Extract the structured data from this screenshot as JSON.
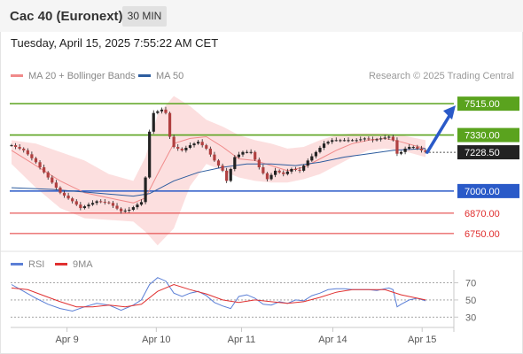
{
  "header": {
    "title": "Cac 40 (Euronext)",
    "timeframe": "30 MIN"
  },
  "timestamp": "Tuesday, April 15, 2025 7:55:22 AM CET",
  "legend": {
    "ma20": {
      "label": "MA 20 + Bollinger Bands",
      "color": "#f08a8a"
    },
    "ma50": {
      "label": "MA 50",
      "color": "#2d5c9e"
    },
    "credit": "Research © 2025 Trading Central"
  },
  "rsi_legend": {
    "rsi": {
      "label": "RSI",
      "color": "#5b7fd6"
    },
    "ma9": {
      "label": "9MA",
      "color": "#e03030"
    }
  },
  "chart_data": [
    {
      "type": "candlestick",
      "ylim": [
        6650,
        7620
      ],
      "x_ticks": [
        "Apr 9",
        "Apr 10",
        "Apr 11",
        "Apr 14",
        "Apr 15"
      ],
      "levels": [
        {
          "value": 7515,
          "label": "7515.00",
          "kind": "resistance",
          "color": "#5aa31e"
        },
        {
          "value": 7330,
          "label": "7330.00",
          "kind": "resistance",
          "color": "#5aa31e"
        },
        {
          "value": 7000,
          "label": "7000.00",
          "kind": "support",
          "color": "#2a5ac8"
        },
        {
          "value": 6870,
          "label": "6870.00",
          "kind": "support",
          "color": "#e03030"
        },
        {
          "value": 6750,
          "label": "6750.00",
          "kind": "support",
          "color": "#e03030"
        }
      ],
      "last_price": {
        "value": 7228.5,
        "label": "7228.50"
      },
      "forecast": {
        "from": 7228.5,
        "to": 7515,
        "color": "#2a5ac8"
      },
      "price_path": [
        [
          0,
          7270
        ],
        [
          3,
          7240
        ],
        [
          6,
          7170
        ],
        [
          9,
          7080
        ],
        [
          12,
          6990
        ],
        [
          15,
          6940
        ],
        [
          17,
          6900
        ],
        [
          19,
          6920
        ],
        [
          21,
          6940
        ],
        [
          24,
          6930
        ],
        [
          27,
          6880
        ],
        [
          29,
          6890
        ],
        [
          31,
          6920
        ],
        [
          32,
          6935
        ],
        [
          33,
          7080
        ],
        [
          34,
          7350
        ],
        [
          35,
          7460
        ],
        [
          36,
          7470
        ],
        [
          37,
          7480
        ],
        [
          38,
          7460
        ],
        [
          39,
          7320
        ],
        [
          40,
          7260
        ],
        [
          42,
          7240
        ],
        [
          44,
          7270
        ],
        [
          46,
          7290
        ],
        [
          48,
          7250
        ],
        [
          50,
          7180
        ],
        [
          52,
          7120
        ],
        [
          53,
          7060
        ],
        [
          55,
          7200
        ],
        [
          57,
          7230
        ],
        [
          59,
          7230
        ],
        [
          61,
          7140
        ],
        [
          63,
          7070
        ],
        [
          65,
          7120
        ],
        [
          67,
          7100
        ],
        [
          69,
          7130
        ],
        [
          71,
          7120
        ],
        [
          73,
          7180
        ],
        [
          75,
          7230
        ],
        [
          77,
          7280
        ],
        [
          79,
          7300
        ],
        [
          81,
          7300
        ],
        [
          83,
          7300
        ],
        [
          85,
          7300
        ],
        [
          87,
          7310
        ],
        [
          89,
          7300
        ],
        [
          91,
          7310
        ],
        [
          93,
          7320
        ],
        [
          94,
          7300
        ],
        [
          95,
          7220
        ],
        [
          96,
          7230
        ],
        [
          97,
          7250
        ],
        [
          98,
          7260
        ],
        [
          99,
          7260
        ],
        [
          100,
          7250
        ],
        [
          101,
          7240
        ],
        [
          102,
          7230
        ]
      ],
      "ma20_path": [
        [
          0,
          7240
        ],
        [
          6,
          7150
        ],
        [
          12,
          7060
        ],
        [
          18,
          6990
        ],
        [
          24,
          6960
        ],
        [
          30,
          6930
        ],
        [
          33,
          6960
        ],
        [
          36,
          7100
        ],
        [
          40,
          7280
        ],
        [
          44,
          7310
        ],
        [
          48,
          7320
        ],
        [
          52,
          7260
        ],
        [
          56,
          7190
        ],
        [
          60,
          7180
        ],
        [
          64,
          7150
        ],
        [
          68,
          7120
        ],
        [
          72,
          7140
        ],
        [
          76,
          7190
        ],
        [
          80,
          7240
        ],
        [
          84,
          7280
        ],
        [
          88,
          7300
        ],
        [
          92,
          7310
        ],
        [
          96,
          7290
        ],
        [
          102,
          7250
        ]
      ],
      "ma50_path": [
        [
          0,
          7020
        ],
        [
          10,
          7010
        ],
        [
          20,
          6990
        ],
        [
          30,
          6970
        ],
        [
          34,
          6985
        ],
        [
          40,
          7060
        ],
        [
          46,
          7110
        ],
        [
          52,
          7140
        ],
        [
          58,
          7160
        ],
        [
          64,
          7160
        ],
        [
          70,
          7150
        ],
        [
          76,
          7170
        ],
        [
          82,
          7200
        ],
        [
          88,
          7220
        ],
        [
          94,
          7240
        ],
        [
          102,
          7250
        ]
      ],
      "bb_upper": [
        [
          0,
          7300
        ],
        [
          6,
          7280
        ],
        [
          12,
          7230
        ],
        [
          18,
          7180
        ],
        [
          24,
          7100
        ],
        [
          30,
          7060
        ],
        [
          33,
          7200
        ],
        [
          36,
          7450
        ],
        [
          40,
          7560
        ],
        [
          44,
          7500
        ],
        [
          48,
          7420
        ],
        [
          52,
          7380
        ],
        [
          56,
          7330
        ],
        [
          60,
          7300
        ],
        [
          64,
          7280
        ],
        [
          68,
          7250
        ],
        [
          72,
          7260
        ],
        [
          76,
          7300
        ],
        [
          80,
          7330
        ],
        [
          84,
          7340
        ],
        [
          88,
          7340
        ],
        [
          92,
          7340
        ],
        [
          96,
          7330
        ],
        [
          102,
          7300
        ]
      ],
      "bb_lower": [
        [
          0,
          7160
        ],
        [
          6,
          7020
        ],
        [
          12,
          6900
        ],
        [
          18,
          6840
        ],
        [
          24,
          6830
        ],
        [
          30,
          6820
        ],
        [
          33,
          6760
        ],
        [
          36,
          6680
        ],
        [
          40,
          6780
        ],
        [
          44,
          7030
        ],
        [
          48,
          7160
        ],
        [
          52,
          7120
        ],
        [
          56,
          7080
        ],
        [
          60,
          7060
        ],
        [
          64,
          7050
        ],
        [
          68,
          7050
        ],
        [
          72,
          7070
        ],
        [
          76,
          7100
        ],
        [
          80,
          7150
        ],
        [
          84,
          7200
        ],
        [
          88,
          7240
        ],
        [
          92,
          7250
        ],
        [
          96,
          7240
        ],
        [
          102,
          7200
        ]
      ]
    },
    {
      "type": "line",
      "ylim": [
        20,
        85
      ],
      "y_ticks": [
        70,
        50,
        30
      ],
      "series": [
        {
          "name": "RSI",
          "color": "#5b7fd6",
          "values": [
            [
              0,
              68
            ],
            [
              3,
              60
            ],
            [
              6,
              52
            ],
            [
              9,
              45
            ],
            [
              12,
              40
            ],
            [
              15,
              37
            ],
            [
              18,
              42
            ],
            [
              21,
              46
            ],
            [
              24,
              44
            ],
            [
              27,
              38
            ],
            [
              30,
              44
            ],
            [
              32,
              50
            ],
            [
              34,
              68
            ],
            [
              36,
              76
            ],
            [
              38,
              72
            ],
            [
              40,
              58
            ],
            [
              42,
              54
            ],
            [
              44,
              58
            ],
            [
              46,
              60
            ],
            [
              48,
              55
            ],
            [
              50,
              47
            ],
            [
              52,
              43
            ],
            [
              54,
              40
            ],
            [
              56,
              54
            ],
            [
              58,
              56
            ],
            [
              60,
              52
            ],
            [
              62,
              45
            ],
            [
              64,
              44
            ],
            [
              66,
              48
            ],
            [
              68,
              46
            ],
            [
              70,
              50
            ],
            [
              72,
              49
            ],
            [
              74,
              55
            ],
            [
              76,
              58
            ],
            [
              78,
              62
            ],
            [
              80,
              63
            ],
            [
              82,
              63
            ],
            [
              84,
              62
            ],
            [
              86,
              62
            ],
            [
              88,
              62
            ],
            [
              90,
              61
            ],
            [
              92,
              63
            ],
            [
              93,
              64
            ],
            [
              94,
              62
            ],
            [
              95,
              42
            ],
            [
              96,
              45
            ],
            [
              98,
              50
            ],
            [
              100,
              52
            ],
            [
              102,
              49
            ]
          ]
        },
        {
          "name": "9MA",
          "color": "#e03030",
          "values": [
            [
              0,
              64
            ],
            [
              4,
              62
            ],
            [
              8,
              55
            ],
            [
              12,
              48
            ],
            [
              16,
              42
            ],
            [
              20,
              42
            ],
            [
              24,
              44
            ],
            [
              28,
              42
            ],
            [
              32,
              45
            ],
            [
              36,
              60
            ],
            [
              40,
              68
            ],
            [
              44,
              62
            ],
            [
              48,
              57
            ],
            [
              52,
              50
            ],
            [
              56,
              47
            ],
            [
              60,
              50
            ],
            [
              64,
              48
            ],
            [
              68,
              46
            ],
            [
              72,
              48
            ],
            [
              76,
              53
            ],
            [
              80,
              59
            ],
            [
              84,
              62
            ],
            [
              88,
              62
            ],
            [
              92,
              62
            ],
            [
              96,
              56
            ],
            [
              102,
              50
            ]
          ]
        }
      ]
    }
  ]
}
